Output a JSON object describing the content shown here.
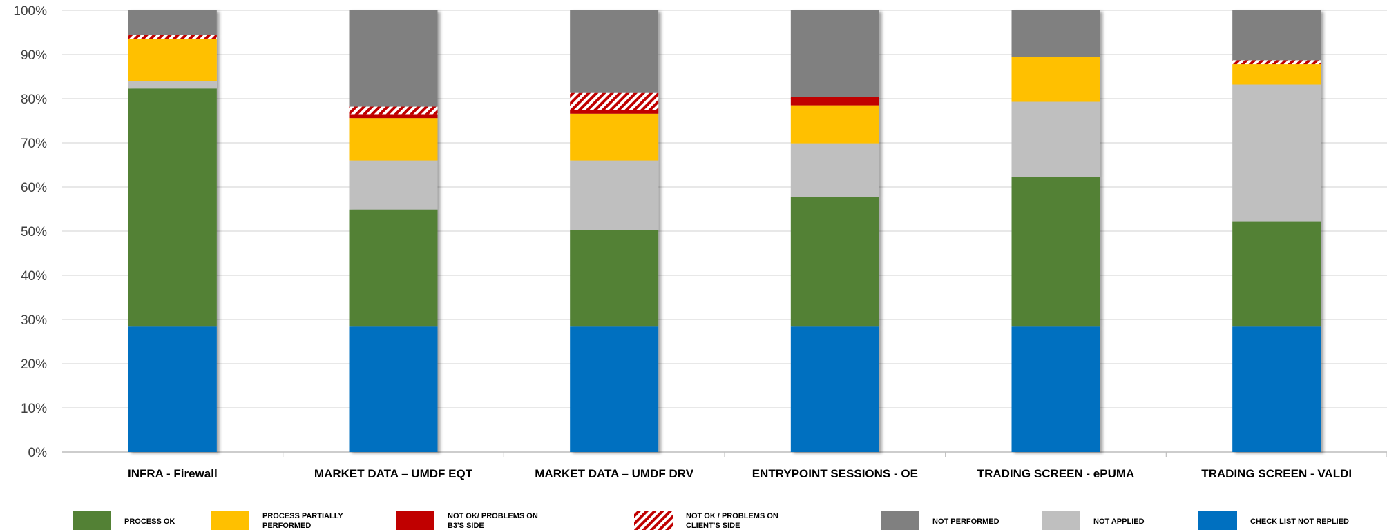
{
  "chart_data": {
    "type": "bar",
    "stacked": true,
    "percent_stacked": true,
    "title": "",
    "xlabel": "",
    "ylabel": "",
    "ylim": [
      0,
      100
    ],
    "yticks": [
      "0%",
      "10%",
      "20%",
      "30%",
      "40%",
      "50%",
      "60%",
      "70%",
      "80%",
      "90%",
      "100%"
    ],
    "grid": true,
    "legend_position": "bottom",
    "categories": [
      "INFRA - Firewall",
      "MARKET DATA – UMDF EQT",
      "MARKET DATA – UMDF DRV",
      "ENTRYPOINT SESSIONS - OE",
      "TRADING SCREEN - ePUMA",
      "TRADING SCREEN - VALDI"
    ],
    "series": [
      {
        "name": "CHECK LIST NOT REPLIED",
        "color": "#0070C0",
        "pattern": "solid",
        "values": [
          28.4,
          28.4,
          28.4,
          28.4,
          28.4,
          28.4
        ]
      },
      {
        "name": "PROCESS OK",
        "color": "#538135",
        "pattern": "solid",
        "values": [
          53.9,
          26.5,
          21.8,
          29.3,
          33.9,
          23.7
        ]
      },
      {
        "name": "NOT APPLIED",
        "color": "#BFBFBF",
        "pattern": "solid",
        "values": [
          1.7,
          11.1,
          15.8,
          12.2,
          17.0,
          31.1
        ]
      },
      {
        "name": "PROCESS PARTIALLY PERFORMED",
        "color": "#FFC000",
        "pattern": "solid",
        "values": [
          9.6,
          9.6,
          10.6,
          8.6,
          10.2,
          4.6
        ]
      },
      {
        "name": "NOT OK/ PROBLEMS ON B3'S SIDE",
        "color": "#C00000",
        "pattern": "solid",
        "values": [
          0,
          0.9,
          0.8,
          1.9,
          0,
          0
        ]
      },
      {
        "name": "NOT OK / PROBLEMS ON CLIENT'S SIDE",
        "color": "#C00000",
        "pattern": "hatch",
        "values": [
          0.8,
          1.7,
          3.9,
          0,
          0,
          0.9
        ]
      },
      {
        "name": "NOT PERFORMED",
        "color": "#808080",
        "pattern": "solid",
        "values": [
          5.6,
          21.8,
          18.7,
          19.6,
          10.5,
          11.3
        ]
      }
    ],
    "legend": [
      {
        "label": "PROCESS OK",
        "color": "#538135",
        "pattern": "solid"
      },
      {
        "label": "PROCESS PARTIALLY PERFORMED",
        "color": "#FFC000",
        "pattern": "solid"
      },
      {
        "label": "NOT OK/ PROBLEMS ON B3'S SIDE",
        "color": "#C00000",
        "pattern": "solid"
      },
      {
        "label": "NOT OK / PROBLEMS ON CLIENT'S SIDE",
        "color": "#C00000",
        "pattern": "hatch"
      },
      {
        "label": "NOT PERFORMED",
        "color": "#808080",
        "pattern": "solid"
      },
      {
        "label": "NOT APPLIED",
        "color": "#BFBFBF",
        "pattern": "solid"
      },
      {
        "label": "CHECK LIST NOT REPLIED",
        "color": "#0070C0",
        "pattern": "solid"
      }
    ]
  }
}
